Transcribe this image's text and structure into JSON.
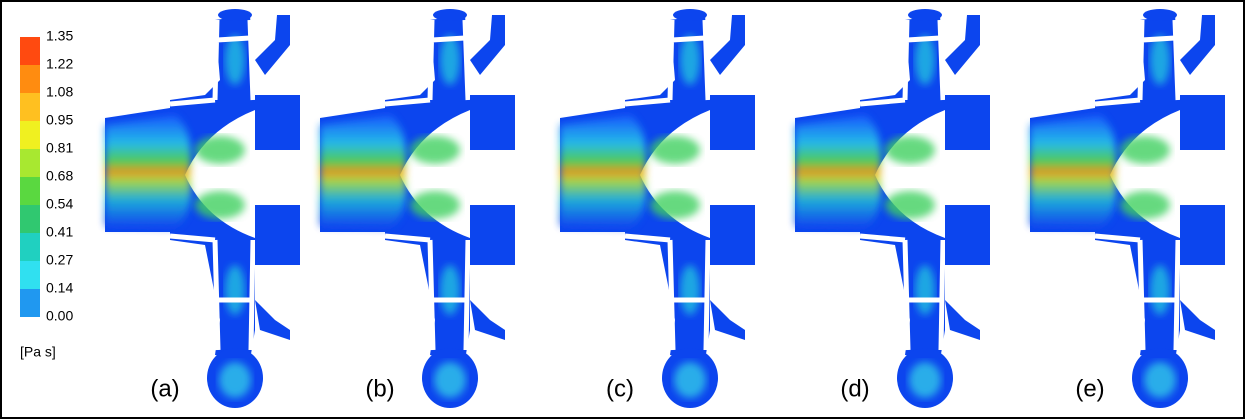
{
  "colorbar": {
    "labels": [
      "1.35",
      "1.22",
      "1.08",
      "0.95",
      "0.81",
      "0.68",
      "0.54",
      "0.41",
      "0.27",
      "0.14",
      "0.00"
    ],
    "unit": "[Pa s]"
  },
  "panels": [
    {
      "label": "(a)"
    },
    {
      "label": "(b)"
    },
    {
      "label": "(c)"
    },
    {
      "label": "(d)"
    },
    {
      "label": "(e)"
    }
  ]
}
